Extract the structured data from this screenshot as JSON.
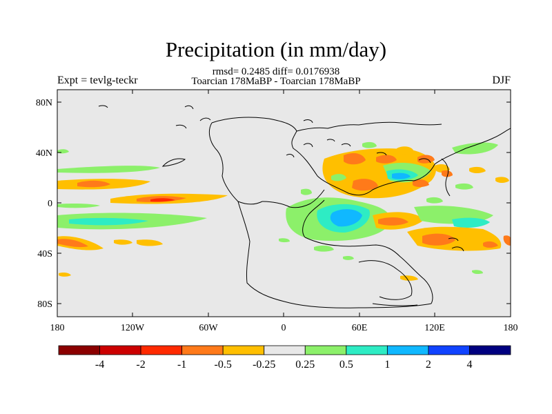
{
  "title": "Precipitation (in mm/day)",
  "stats_line": "rmsd= 0.2485 diff= 0.0176938",
  "subtitle": "Toarcian 178MaBP - Toarcian 178MaBP",
  "left_label": "Expt = tevlg-teckr",
  "right_label": "DJF",
  "y_ticks": [
    "80N",
    "40N",
    "0",
    "40S",
    "80S"
  ],
  "x_ticks": [
    "180",
    "120W",
    "60W",
    "0",
    "60E",
    "120E",
    "180"
  ],
  "colorbar": {
    "colors": [
      "#8b0000",
      "#cc0000",
      "#ff2a00",
      "#ff7a1a",
      "#ffbf00",
      "#e8e8e8",
      "#8cf06a",
      "#2eecc4",
      "#10b8ff",
      "#1043ff",
      "#000080"
    ],
    "labels": [
      "-4",
      "-2",
      "-1",
      "-0.5",
      "-0.25",
      "0.25",
      "0.5",
      "1",
      "2",
      "4"
    ]
  }
}
